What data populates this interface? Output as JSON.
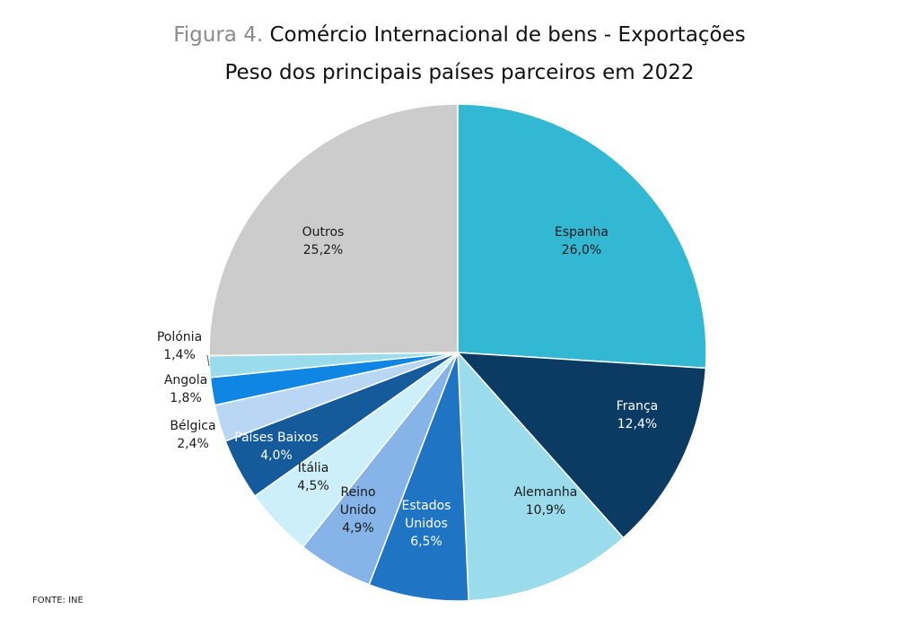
{
  "figure_prefix": "Figura 4.",
  "title_line1": "Comércio Internacional de bens - Exportações",
  "title_line2": "Peso dos principais países parceiros em 2022",
  "source": "FONTE: INE",
  "chart_data": {
    "type": "pie",
    "title": "Comércio Internacional de bens - Exportações / Peso dos principais países parceiros em 2022",
    "slices": [
      {
        "label": "Espanha",
        "value": 26.0,
        "value_label": "26,0%",
        "color": "#33b8d4",
        "text_color": "#1a1a1a"
      },
      {
        "label": "França",
        "value": 12.4,
        "value_label": "12,4%",
        "color": "#0b3a63",
        "text_color": "#ffffff"
      },
      {
        "label": "Alemanha",
        "value": 10.9,
        "value_label": "10,9%",
        "color": "#9adcec",
        "text_color": "#1a1a1a"
      },
      {
        "label": "Estados Unidos",
        "value": 6.5,
        "value_label": "6,5%",
        "color": "#1f74c4",
        "text_color": "#ffffff"
      },
      {
        "label": "Reino Unido",
        "value": 4.9,
        "value_label": "4,9%",
        "color": "#86b4e8",
        "text_color": "#1a1a1a"
      },
      {
        "label": "Itália",
        "value": 4.5,
        "value_label": "4,5%",
        "color": "#cdeff9",
        "text_color": "#1a1a1a"
      },
      {
        "label": "Países Baixos",
        "value": 4.0,
        "value_label": "4,0%",
        "color": "#155a9a",
        "text_color": "#ffffff"
      },
      {
        "label": "Bélgica",
        "value": 2.4,
        "value_label": "2,4%",
        "color": "#b9d7f5",
        "text_color": "#1a1a1a"
      },
      {
        "label": "Angola",
        "value": 1.8,
        "value_label": "1,8%",
        "color": "#0f86e4",
        "text_color": "#1a1a1a"
      },
      {
        "label": "Polónia",
        "value": 1.4,
        "value_label": "1,4%",
        "color": "#9adcec",
        "text_color": "#1a1a1a"
      },
      {
        "label": "Outros",
        "value": 25.2,
        "value_label": "25,2%",
        "color": "#cccccc",
        "text_color": "#1a1a1a"
      }
    ]
  }
}
